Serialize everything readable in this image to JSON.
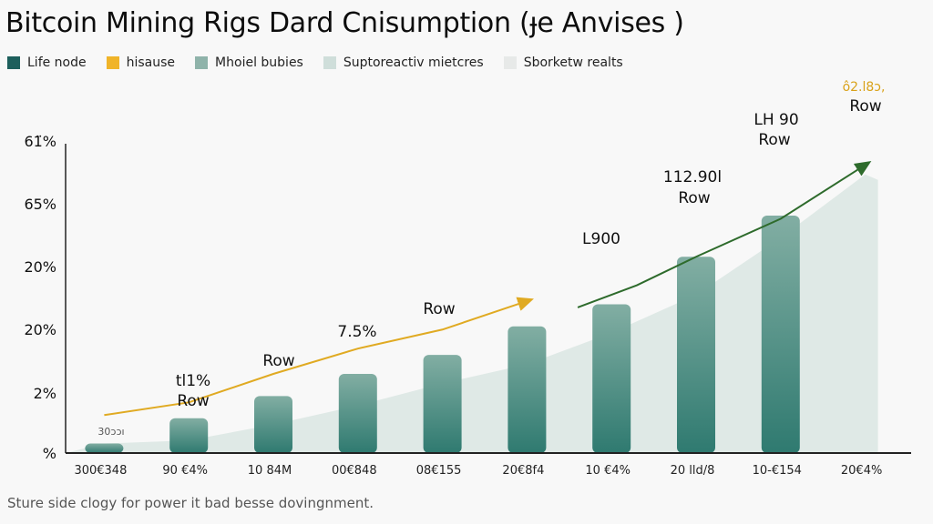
{
  "title": "Bitcoin Mining Rigs Dard Cnisumption (ɟe Anvises )",
  "legend": [
    {
      "label": "Life node",
      "color": "#1d5f5c"
    },
    {
      "label": "hisause",
      "color": "#f0b429"
    },
    {
      "label": "Mhoiel bubies",
      "color": "#8fb3aa"
    },
    {
      "label": "Suptoreactiv mietcres",
      "color": "#cfdeda"
    },
    {
      "label": "Sborketw realts",
      "color": "#e7e9e8"
    }
  ],
  "caption": "Sture side clogy for power it bad besse dovingnment.",
  "chart_data": {
    "type": "bar",
    "title": "Bitcoin Mining Rigs Dard Cnisumption (ɟe Anvises )",
    "xlabel": "",
    "ylabel": "",
    "y_tick_labels": [
      "61̈%",
      "65%",
      "20%",
      "20%",
      "2%",
      "%"
    ],
    "categories": [
      "300€348",
      "90 €4%",
      "10 84M",
      "00€848",
      "08€155",
      "20€8f4",
      "10 €4%",
      "20 lld/8",
      "10-€154",
      "20€4%"
    ],
    "bar_values": [
      0.3,
      1.1,
      1.8,
      2.5,
      3.1,
      4.0,
      4.7,
      6.2,
      7.5,
      null
    ],
    "area_values": [
      0.3,
      0.4,
      0.9,
      1.5,
      2.2,
      2.8,
      3.8,
      5.0,
      6.8,
      8.8
    ],
    "ylim": [
      0,
      10
    ],
    "grid": false,
    "legend_position": "top-left",
    "line_series": [
      {
        "name": "hisause",
        "color": "#e0aa22",
        "points": [
          [
            0,
            1.2
          ],
          [
            1,
            1.6
          ],
          [
            2,
            2.5
          ],
          [
            3,
            3.3
          ],
          [
            4,
            3.9
          ],
          [
            5,
            4.8
          ]
        ]
      },
      {
        "name": "Life node",
        "color": "#2e6b2c",
        "points": [
          [
            5.6,
            4.6
          ],
          [
            6.3,
            5.3
          ],
          [
            7,
            6.2
          ],
          [
            8,
            7.4
          ],
          [
            9,
            9.1
          ]
        ]
      }
    ],
    "annotations": [
      {
        "text": "30ɔɔı",
        "style": "dark-small"
      },
      {
        "text": "tl1%",
        "style": "dark"
      },
      {
        "text": "Row",
        "style": "dark"
      },
      {
        "text": "7.5%",
        "style": "dark"
      },
      {
        "text": "Row",
        "style": "dark"
      },
      {
        "text": "Row",
        "style": "dark"
      },
      {
        "text": "L900",
        "style": "dark"
      },
      {
        "text": "112.90l",
        "style": "dark"
      },
      {
        "text": "Row",
        "style": "dark"
      },
      {
        "text": "LH 90",
        "style": "dark"
      },
      {
        "text": "Row",
        "style": "dark"
      },
      {
        "text": "ô2.l8ɔ,",
        "style": "gold"
      },
      {
        "text": "Row",
        "style": "dark"
      }
    ]
  }
}
